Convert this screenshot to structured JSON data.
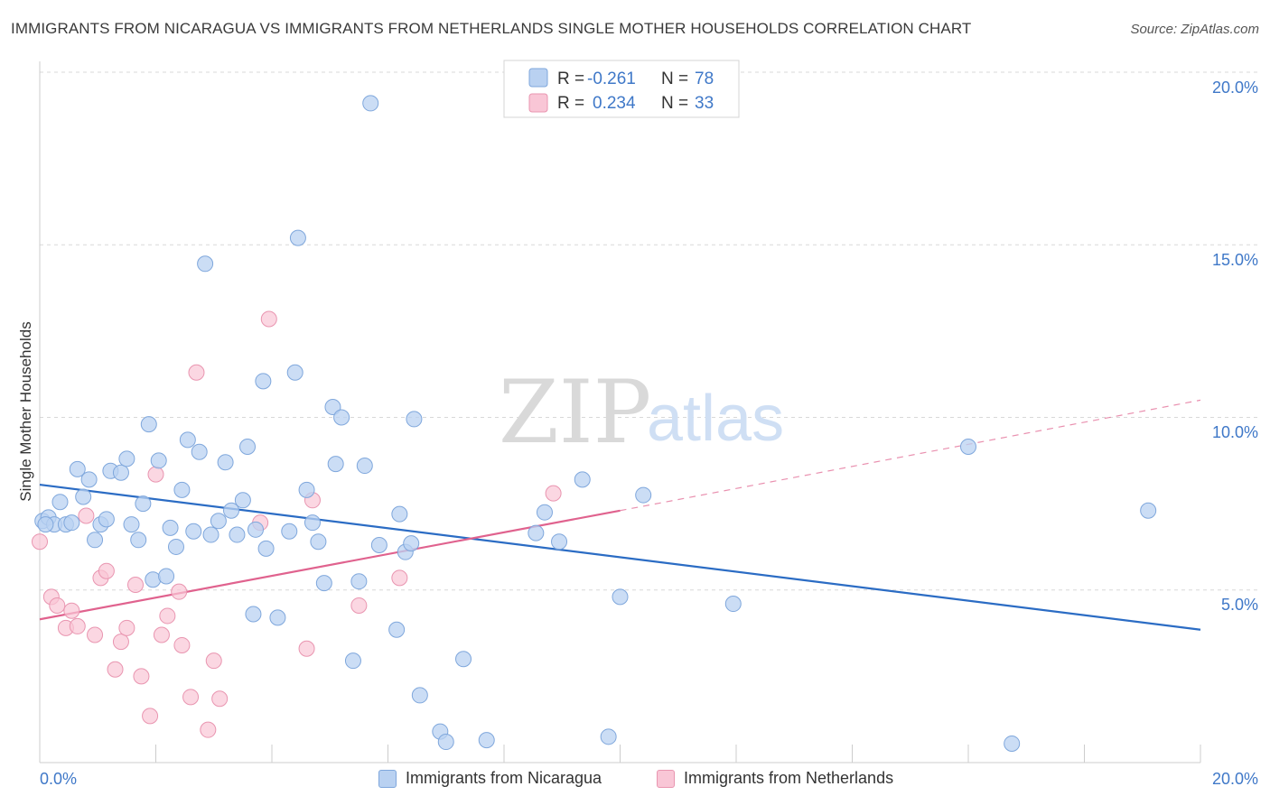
{
  "title": "IMMIGRANTS FROM NICARAGUA VS IMMIGRANTS FROM NETHERLANDS SINGLE MOTHER HOUSEHOLDS CORRELATION CHART",
  "source": "Source: ZipAtlas.com",
  "watermark": {
    "zip": "ZIP",
    "atlas": "atlas"
  },
  "colors": {
    "blue_fill": "#b9d1f1",
    "blue_stroke": "#7fa7dc",
    "blue_line": "#2b6cc4",
    "pink_fill": "#f9c6d6",
    "pink_stroke": "#e995b0",
    "pink_line": "#e0628e",
    "tick_text": "#3f78c8",
    "grid": "#d8d8d8"
  },
  "legend": {
    "rows": [
      {
        "r_label": "R =",
        "r_value": "-0.261",
        "n_label": "N =",
        "n_value": "78"
      },
      {
        "r_label": "R =",
        "r_value": "0.234",
        "n_label": "N =",
        "n_value": "33"
      }
    ]
  },
  "bottom_legend": [
    "Immigrants from Nicaragua",
    "Immigrants from Netherlands"
  ],
  "chart_data": {
    "type": "scatter",
    "title": "IMMIGRANTS FROM NICARAGUA VS IMMIGRANTS FROM NETHERLANDS SINGLE MOTHER HOUSEHOLDS CORRELATION CHART",
    "xlabel": "",
    "ylabel": "Single Mother Households",
    "xlim": [
      0,
      20
    ],
    "ylim": [
      0,
      20
    ],
    "x_tick_labels": [
      "0.0%",
      "20.0%"
    ],
    "y_ticks": [
      5,
      10,
      15,
      20
    ],
    "y_tick_labels": [
      "5.0%",
      "10.0%",
      "15.0%",
      "20.0%"
    ],
    "grid": "horizontal dashed",
    "legend_position": "top-center",
    "series": [
      {
        "name": "Immigrants from Nicaragua",
        "R": -0.261,
        "N": 78,
        "trend": {
          "x0": 0,
          "y0": 8.05,
          "x1": 20,
          "y1": 3.85
        },
        "points": [
          [
            0.05,
            7.0
          ],
          [
            0.15,
            7.1
          ],
          [
            0.25,
            6.9
          ],
          [
            0.35,
            7.55
          ],
          [
            0.45,
            6.9
          ],
          [
            0.55,
            6.95
          ],
          [
            0.65,
            8.5
          ],
          [
            0.75,
            7.7
          ],
          [
            0.85,
            8.2
          ],
          [
            0.95,
            6.45
          ],
          [
            1.05,
            6.9
          ],
          [
            1.15,
            7.05
          ],
          [
            1.22,
            8.45
          ],
          [
            1.4,
            8.4
          ],
          [
            1.5,
            8.8
          ],
          [
            1.58,
            6.9
          ],
          [
            1.7,
            6.45
          ],
          [
            1.78,
            7.5
          ],
          [
            1.88,
            9.8
          ],
          [
            1.95,
            5.3
          ],
          [
            2.05,
            8.75
          ],
          [
            2.18,
            5.4
          ],
          [
            2.25,
            6.8
          ],
          [
            2.35,
            6.25
          ],
          [
            2.45,
            7.9
          ],
          [
            2.55,
            9.35
          ],
          [
            2.65,
            6.7
          ],
          [
            2.75,
            9.0
          ],
          [
            2.85,
            14.45
          ],
          [
            2.95,
            6.6
          ],
          [
            3.08,
            7.0
          ],
          [
            3.2,
            8.7
          ],
          [
            3.3,
            7.3
          ],
          [
            3.4,
            6.6
          ],
          [
            3.5,
            7.6
          ],
          [
            3.58,
            9.15
          ],
          [
            3.68,
            4.3
          ],
          [
            3.72,
            6.75
          ],
          [
            3.85,
            11.05
          ],
          [
            3.9,
            6.2
          ],
          [
            4.1,
            4.2
          ],
          [
            4.3,
            6.7
          ],
          [
            4.4,
            11.3
          ],
          [
            4.45,
            15.2
          ],
          [
            4.6,
            7.9
          ],
          [
            4.7,
            6.95
          ],
          [
            4.8,
            6.4
          ],
          [
            4.9,
            5.2
          ],
          [
            5.05,
            10.3
          ],
          [
            5.1,
            8.65
          ],
          [
            5.2,
            10.0
          ],
          [
            5.4,
            2.95
          ],
          [
            5.5,
            5.25
          ],
          [
            5.6,
            8.6
          ],
          [
            5.7,
            19.1
          ],
          [
            5.85,
            6.3
          ],
          [
            6.15,
            3.85
          ],
          [
            6.2,
            7.2
          ],
          [
            6.3,
            6.1
          ],
          [
            6.4,
            6.35
          ],
          [
            6.45,
            9.95
          ],
          [
            6.55,
            1.95
          ],
          [
            6.9,
            0.9
          ],
          [
            7.0,
            0.6
          ],
          [
            7.3,
            3.0
          ],
          [
            7.7,
            0.65
          ],
          [
            8.55,
            6.65
          ],
          [
            8.7,
            7.25
          ],
          [
            8.95,
            6.4
          ],
          [
            9.35,
            8.2
          ],
          [
            9.8,
            0.75
          ],
          [
            10.0,
            4.8
          ],
          [
            10.4,
            7.75
          ],
          [
            11.95,
            4.6
          ],
          [
            16.0,
            9.15
          ],
          [
            16.75,
            0.55
          ],
          [
            19.1,
            7.3
          ],
          [
            0.1,
            6.9
          ]
        ]
      },
      {
        "name": "Immigrants from Netherlands",
        "R": 0.234,
        "N": 33,
        "trend": {
          "x0": 0,
          "y0": 4.15,
          "x1": 10,
          "y1": 7.3,
          "dashed_x1": 20,
          "dashed_y1": 10.5
        },
        "points": [
          [
            0.0,
            6.4
          ],
          [
            0.2,
            4.8
          ],
          [
            0.3,
            4.55
          ],
          [
            0.45,
            3.9
          ],
          [
            0.55,
            4.4
          ],
          [
            0.65,
            3.95
          ],
          [
            0.8,
            7.15
          ],
          [
            0.95,
            3.7
          ],
          [
            1.05,
            5.35
          ],
          [
            1.15,
            5.55
          ],
          [
            1.3,
            2.7
          ],
          [
            1.4,
            3.5
          ],
          [
            1.5,
            3.9
          ],
          [
            1.65,
            5.15
          ],
          [
            1.75,
            2.5
          ],
          [
            1.9,
            1.35
          ],
          [
            2.0,
            8.35
          ],
          [
            2.1,
            3.7
          ],
          [
            2.2,
            4.25
          ],
          [
            2.4,
            4.95
          ],
          [
            2.45,
            3.4
          ],
          [
            2.6,
            1.9
          ],
          [
            2.7,
            11.3
          ],
          [
            2.9,
            0.95
          ],
          [
            3.0,
            2.95
          ],
          [
            3.1,
            1.85
          ],
          [
            3.8,
            6.95
          ],
          [
            3.95,
            12.85
          ],
          [
            4.6,
            3.3
          ],
          [
            4.7,
            7.6
          ],
          [
            5.5,
            4.55
          ],
          [
            6.2,
            5.35
          ],
          [
            8.85,
            7.8
          ]
        ]
      }
    ]
  }
}
